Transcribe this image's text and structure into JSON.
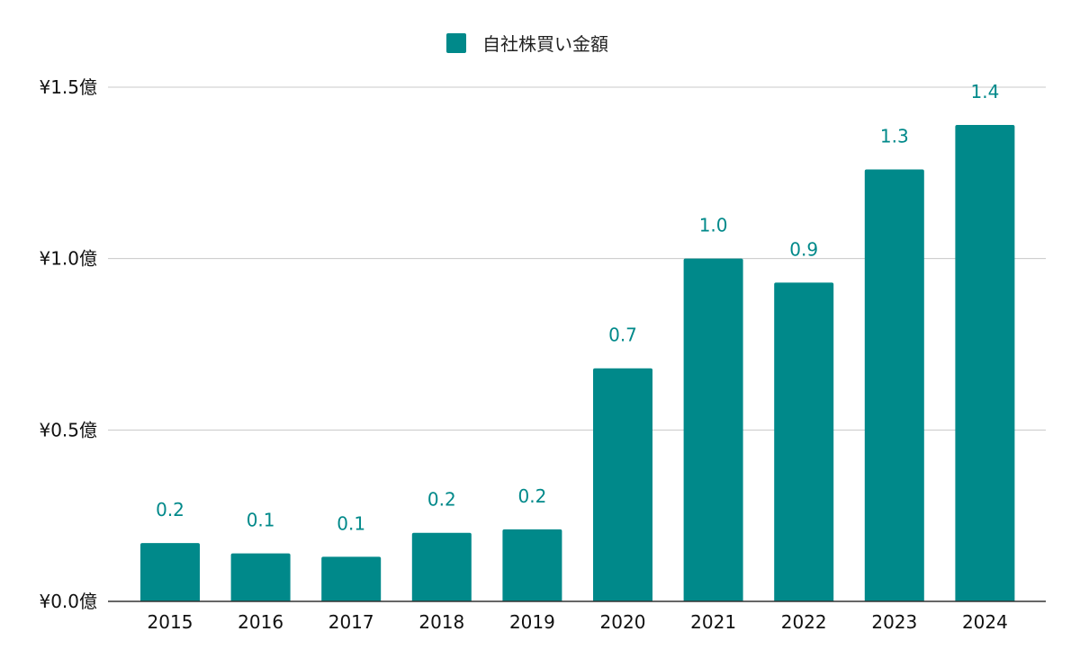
{
  "chart_data": {
    "type": "bar",
    "title": "",
    "xlabel": "",
    "ylabel": "",
    "categories": [
      "2015",
      "2016",
      "2017",
      "2018",
      "2019",
      "2020",
      "2021",
      "2022",
      "2023",
      "2024"
    ],
    "series": [
      {
        "name": "自社株買い金額",
        "color": "#00898a",
        "values": [
          0.17,
          0.14,
          0.13,
          0.2,
          0.21,
          0.68,
          1.0,
          0.93,
          1.26,
          1.39
        ],
        "data_labels": [
          "0.2",
          "0.1",
          "0.1",
          "0.2",
          "0.2",
          "0.7",
          "1.0",
          "0.9",
          "1.3",
          "1.4"
        ]
      }
    ],
    "ylim": [
      0,
      1.5
    ],
    "y_ticks": [
      0,
      0.5,
      1.0,
      1.5
    ],
    "y_tick_labels": [
      "¥0.0億",
      "¥0.5億",
      "¥1.0億",
      "¥1.5億"
    ],
    "grid": true,
    "legend_position": "top-center"
  }
}
